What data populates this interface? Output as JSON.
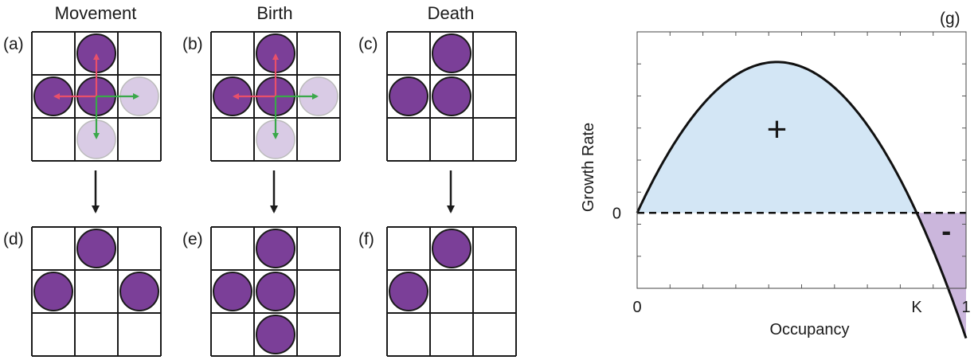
{
  "column_titles": {
    "movement": "Movement",
    "birth": "Birth",
    "death": "Death"
  },
  "panel_labels": {
    "a": "(a)",
    "b": "(b)",
    "c": "(c)",
    "d": "(d)",
    "e": "(e)",
    "f": "(f)",
    "g": "(g)"
  },
  "colors": {
    "agent": "#7b3f98",
    "agent_stroke": "#1a1a1a",
    "potential_site": "#d9cbe5",
    "potential_stroke": "#bbbbbb",
    "arrow_red": "#e9506a",
    "arrow_green": "#3aa84a",
    "grid": "#1a1a1a",
    "positive_region": "#d3e6f5",
    "negative_region": "#cbb6dc",
    "curve": "#111111"
  },
  "chart_data": {
    "type": "line",
    "title": "",
    "xlabel": "Occupancy",
    "ylabel": "Growth Rate",
    "x_ticks": [
      {
        "value": 0,
        "label": "0"
      },
      {
        "value": 0.85,
        "label": "K"
      },
      {
        "value": 1,
        "label": "1"
      }
    ],
    "y_ticks": [
      {
        "value": 0,
        "label": "0"
      }
    ],
    "xlim": [
      0,
      1
    ],
    "ylim": [
      -0.25,
      0.6
    ],
    "series": [
      {
        "curve": "r*C*(1-C/K)",
        "K": 0.85,
        "peak": {
          "x": 0.425,
          "y": 0.5
        }
      }
    ],
    "region_labels": {
      "positive": "+",
      "negative": "-"
    },
    "zero_line": "dashed"
  }
}
